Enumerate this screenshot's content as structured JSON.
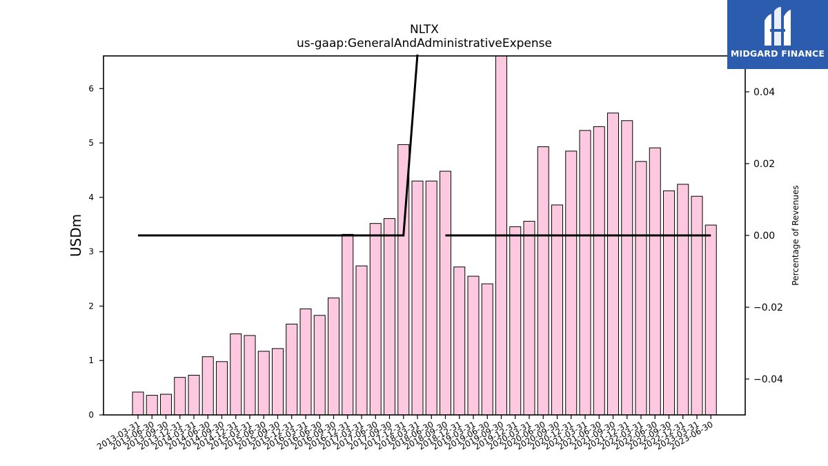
{
  "chart_data": {
    "type": "bar",
    "title": "NLTX",
    "subtitle": "us-gaap:GeneralAndAdministrativeExpense",
    "ylabel": "USDm",
    "y2label": "Percentage of Revenues",
    "ylim": [
      0,
      6.6
    ],
    "y2lim": [
      -0.05,
      0.05
    ],
    "yticks": [
      "0",
      "1",
      "2",
      "3",
      "4",
      "5",
      "6"
    ],
    "y2ticks": [
      "−0.04",
      "−0.02",
      "0.00",
      "0.02",
      "0.04"
    ],
    "categories": [
      "2013-03-31",
      "2013-06-30",
      "2013-09-30",
      "2013-12-31",
      "2014-03-31",
      "2014-06-30",
      "2014-09-30",
      "2014-12-31",
      "2015-03-31",
      "2015-06-30",
      "2015-09-30",
      "2015-12-31",
      "2016-03-31",
      "2016-06-30",
      "2016-09-30",
      "2016-12-31",
      "2017-03-31",
      "2017-06-30",
      "2017-09-30",
      "2017-12-31",
      "2018-03-31",
      "2018-06-30",
      "2018-09-30",
      "2018-12-31",
      "2019-03-31",
      "2019-06-30",
      "2019-09-30",
      "2019-12-31",
      "2020-03-31",
      "2020-06-30",
      "2020-09-30",
      "2020-12-31",
      "2021-03-31",
      "2021-06-30",
      "2021-09-30",
      "2021-12-31",
      "2022-03-31",
      "2022-06-30",
      "2022-09-30",
      "2022-12-31",
      "2023-03-31",
      "2023-06-30"
    ],
    "values": [
      0.42,
      0.36,
      0.38,
      0.69,
      0.73,
      1.07,
      0.98,
      1.49,
      1.46,
      1.17,
      1.22,
      1.67,
      1.95,
      1.83,
      2.15,
      3.32,
      2.74,
      3.52,
      3.61,
      4.97,
      4.3,
      4.3,
      4.48,
      2.72,
      2.55,
      2.41,
      6.6,
      3.46,
      3.56,
      4.93,
      3.86,
      4.85,
      5.23,
      5.3,
      5.55,
      5.41,
      4.66,
      4.91,
      4.12,
      4.24,
      4.02,
      3.49
    ],
    "line_series": {
      "axis": "right",
      "values": [
        0,
        0,
        0,
        0,
        0,
        0,
        0,
        0,
        0,
        0,
        0,
        0,
        0,
        0,
        0,
        0,
        0,
        0,
        0,
        0,
        0.08,
        null,
        0,
        0,
        0,
        0,
        0,
        0,
        0,
        0,
        0,
        0,
        0,
        0,
        0,
        0,
        0,
        0,
        0,
        0,
        0,
        0
      ]
    },
    "colors": {
      "bar_fill": "#fcc9e0",
      "bar_edge": "#000000",
      "line": "#000000"
    },
    "grid": false
  },
  "logo": {
    "text": "MIDGARD FINANCE",
    "icon": "midgard-logo-icon",
    "bg": "#2b5cae"
  }
}
